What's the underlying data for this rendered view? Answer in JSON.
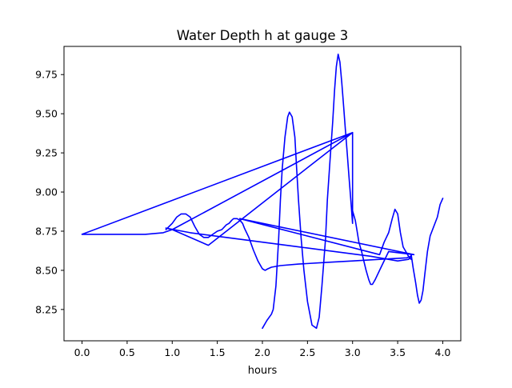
{
  "chart_data": {
    "type": "line",
    "title": "Water Depth h at gauge 3",
    "xlabel": "hours",
    "ylabel": "",
    "xlim": [
      -0.2,
      4.2
    ],
    "ylim": [
      8.05,
      9.93
    ],
    "xticks": [
      0.0,
      0.5,
      1.0,
      1.5,
      2.0,
      2.5,
      3.0,
      3.5,
      4.0
    ],
    "xtick_labels": [
      "0.0",
      "0.5",
      "1.0",
      "1.5",
      "2.0",
      "2.5",
      "3.0",
      "3.5",
      "4.0"
    ],
    "yticks": [
      8.25,
      8.5,
      8.75,
      9.0,
      9.25,
      9.5,
      9.75
    ],
    "ytick_labels": [
      "8.25",
      "8.50",
      "8.75",
      "9.00",
      "9.25",
      "9.50",
      "9.75"
    ],
    "grid": false,
    "legend": false,
    "series": [
      {
        "color": "#0000ff",
        "x": [
          2.0,
          2.05,
          2.1,
          2.12,
          2.15,
          2.18,
          2.2,
          2.22,
          2.25,
          2.28,
          2.3,
          2.33,
          2.36,
          2.38,
          2.4,
          2.43,
          2.46,
          2.5,
          2.55,
          2.6,
          2.63,
          2.66,
          2.7,
          2.72,
          2.75,
          2.78,
          2.8,
          2.82,
          2.84,
          2.86,
          2.88,
          2.9,
          2.92,
          2.94,
          2.96,
          2.98,
          3.0,
          3.0,
          2.6,
          2.2,
          1.8,
          1.4,
          1.0,
          0.93,
          1.2,
          1.6,
          2.0,
          2.4,
          2.8,
          3.2,
          3.5,
          3.62,
          3.64,
          3.65,
          3.67,
          3.7,
          3.72,
          3.74,
          3.76,
          3.78,
          3.8,
          3.83,
          3.86,
          3.9,
          3.94,
          3.97,
          4.0
        ],
        "y": [
          8.13,
          8.18,
          8.22,
          8.25,
          8.4,
          8.7,
          8.95,
          9.15,
          9.35,
          9.48,
          9.51,
          9.48,
          9.35,
          9.15,
          8.95,
          8.7,
          8.5,
          8.3,
          8.15,
          8.13,
          8.2,
          8.4,
          8.7,
          8.95,
          9.2,
          9.45,
          9.65,
          9.8,
          9.88,
          9.83,
          9.7,
          9.55,
          9.4,
          9.25,
          9.1,
          8.95,
          8.8,
          9.38,
          9.2,
          9.02,
          8.84,
          8.66,
          8.76,
          8.77,
          8.74,
          8.71,
          8.68,
          8.65,
          8.62,
          8.59,
          8.56,
          8.57,
          8.58,
          8.6,
          8.52,
          8.42,
          8.34,
          8.29,
          8.31,
          8.37,
          8.47,
          8.62,
          8.72,
          8.78,
          8.84,
          8.92,
          8.96
        ]
      },
      {
        "color": "#0000ff",
        "x": [
          0.0,
          3.0,
          1.0,
          0.9,
          0.8,
          0.7,
          0.5,
          0.0,
          0.0
        ],
        "y": [
          8.73,
          9.38,
          8.76,
          8.74,
          8.735,
          8.73,
          8.73,
          8.73,
          8.73
        ]
      },
      {
        "color": "#0000ff",
        "x": [
          0.93,
          1.0,
          1.05,
          1.1,
          1.15,
          1.2,
          1.25,
          1.3,
          1.35,
          1.4,
          1.45,
          1.5,
          1.55,
          1.6,
          1.63,
          1.66,
          1.68,
          1.7,
          1.72,
          1.75,
          1.78,
          1.8,
          1.85,
          1.9,
          1.95,
          2.0,
          2.03,
          2.06,
          2.1,
          2.2,
          2.4,
          2.7,
          3.0,
          3.3,
          3.6,
          3.65
        ],
        "y": [
          8.76,
          8.8,
          8.84,
          8.86,
          8.86,
          8.84,
          8.78,
          8.73,
          8.71,
          8.71,
          8.73,
          8.75,
          8.76,
          8.79,
          8.8,
          8.82,
          8.83,
          8.83,
          8.83,
          8.82,
          8.8,
          8.77,
          8.71,
          8.63,
          8.56,
          8.51,
          8.5,
          8.51,
          8.52,
          8.53,
          8.54,
          8.55,
          8.56,
          8.57,
          8.58,
          8.59
        ]
      },
      {
        "color": "#0000ff",
        "x": [
          1.75,
          3.68,
          3.4,
          3.3,
          3.25,
          3.22,
          3.2,
          3.18,
          3.15,
          3.12,
          3.1,
          3.07,
          3.05,
          3.03,
          3.0
        ],
        "y": [
          8.83,
          8.6,
          8.62,
          8.5,
          8.44,
          8.41,
          8.41,
          8.44,
          8.5,
          8.57,
          8.62,
          8.68,
          8.75,
          8.82,
          8.88
        ]
      },
      {
        "color": "#0000ff",
        "x": [
          1.75,
          3.3,
          3.35,
          3.4,
          3.44,
          3.47,
          3.5,
          3.53,
          3.56,
          3.6,
          3.63,
          3.65
        ],
        "y": [
          8.83,
          8.6,
          8.68,
          8.74,
          8.83,
          8.89,
          8.86,
          8.74,
          8.65,
          8.61,
          8.58,
          8.57
        ]
      }
    ]
  }
}
